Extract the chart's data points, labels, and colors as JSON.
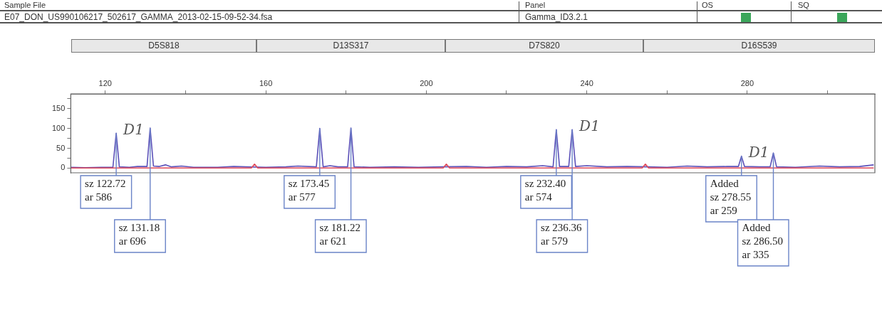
{
  "chart_data": {
    "type": "line",
    "series": [
      {
        "color": "#5b50b8",
        "x": [
          111.5,
          115,
          119,
          121.9,
          122.72,
          123.5,
          126,
          128,
          130.4,
          131.18,
          132,
          133.5,
          135,
          136.5,
          139,
          142,
          148,
          152,
          155,
          160,
          165,
          168,
          172.6,
          173.45,
          174.3,
          176,
          178,
          180.4,
          181.22,
          182,
          186,
          192,
          198,
          204,
          210,
          215,
          220,
          225,
          229,
          231.6,
          232.4,
          233.2,
          235.5,
          236.36,
          237.2,
          240,
          245,
          250,
          255,
          260,
          265,
          270,
          275,
          277.8,
          278.55,
          279.3,
          283,
          285.7,
          286.5,
          287.3,
          292,
          298,
          303,
          308,
          311.5
        ],
        "values": [
          2,
          1,
          2,
          2,
          88,
          3,
          2,
          4,
          4,
          101,
          5,
          4,
          8,
          3,
          5,
          2,
          2,
          4,
          3,
          2,
          3,
          5,
          3,
          100,
          3,
          6,
          3,
          3,
          101,
          3,
          2,
          3,
          2,
          3,
          4,
          2,
          4,
          3,
          6,
          3,
          97,
          4,
          4,
          97,
          4,
          6,
          3,
          4,
          3,
          2,
          5,
          3,
          4,
          4,
          30,
          4,
          3,
          3,
          38,
          3,
          2,
          5,
          3,
          4,
          8
        ]
      },
      {
        "color": "#e04a5a",
        "x": [
          111.5,
          156.4,
          157.2,
          158,
          204.2,
          205,
          205.8,
          253.8,
          254.6,
          255.4,
          311.5
        ],
        "values": [
          0,
          0,
          10,
          0,
          0,
          10,
          0,
          0,
          10,
          0,
          0
        ]
      }
    ],
    "xlim": [
      111.4,
      311.8
    ],
    "xticks": [
      120,
      {
        "value": 140,
        "label": null
      },
      160,
      {
        "value": 180,
        "label": null
      },
      200,
      {
        "value": 220,
        "label": null
      },
      240,
      {
        "value": 260,
        "label": null
      },
      280,
      {
        "value": 300,
        "label": null
      }
    ],
    "ylim": [
      -12,
      187
    ],
    "yticks": [
      0,
      {
        "value": 25,
        "label": null
      },
      50,
      {
        "value": 75,
        "label": null
      },
      100,
      {
        "value": 125,
        "label": null
      },
      150,
      {
        "value": 175,
        "label": null
      }
    ],
    "annotations": [
      "Sample File",
      "E07_DON_US990106217_502617_GAMMA_2013-02-15-09-52-34.fsa",
      "Panel",
      "Gamma_ID3.2.1",
      "OS",
      "SQ",
      "D5S818",
      "D13S317",
      "D7S820",
      "D16S539",
      {
        "text": "sz 122.72\nar 586",
        "x": 122.72,
        "y": 88
      },
      {
        "text": "sz 131.18\nar 696",
        "x": 131.18,
        "y": 101
      },
      {
        "text": "sz 173.45\nar 577",
        "x": 173.45,
        "y": 100
      },
      {
        "text": "sz 181.22\nar 621",
        "x": 181.22,
        "y": 101
      },
      {
        "text": "sz 232.40\nar 574",
        "x": 232.4,
        "y": 97
      },
      {
        "text": "sz 236.36\nar 579",
        "x": 236.36,
        "y": 97
      },
      {
        "text": "Added\nsz 278.55\nar 259",
        "x": 278.55,
        "y": 30
      },
      {
        "text": "Added\nsz 286.50\nar 335",
        "x": 286.5,
        "y": 38
      },
      {
        "text": "D1",
        "x": 122.72,
        "y": 88
      },
      {
        "text": "D1",
        "x": 236.36,
        "y": 97
      },
      {
        "text": "D1",
        "x": 278.55,
        "y": 30
      }
    ],
    "grid": false,
    "legend": false,
    "marker": "none",
    "line_style": "solid"
  }
}
